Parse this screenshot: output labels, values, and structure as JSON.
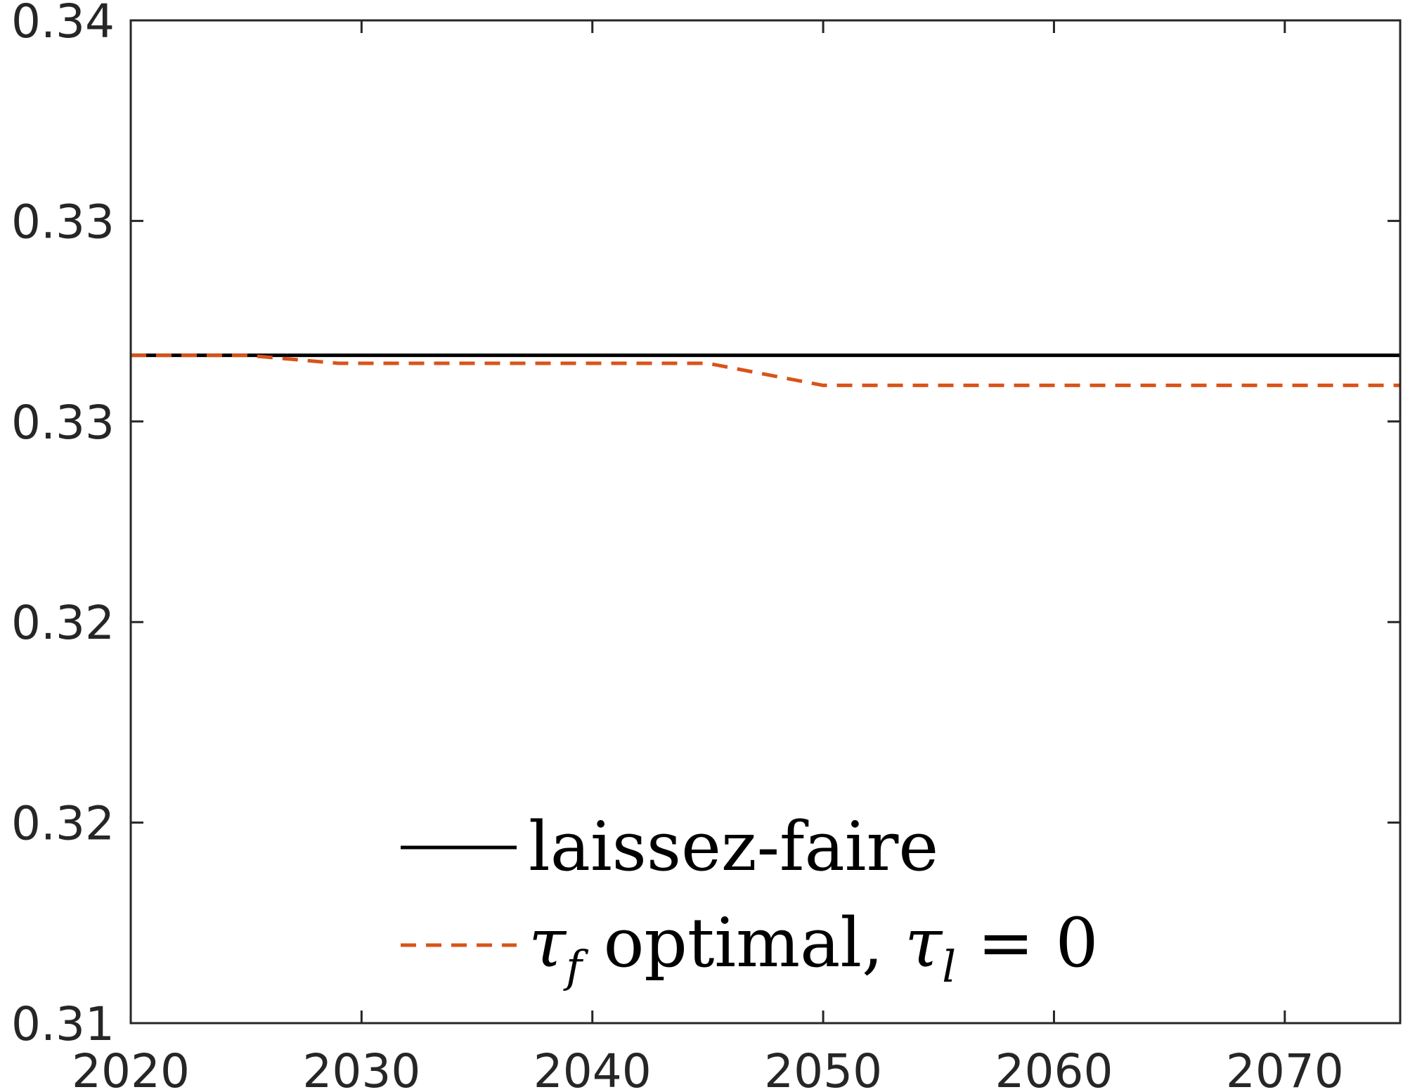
{
  "chart_data": {
    "type": "line",
    "title": "",
    "xlabel": "",
    "ylabel": "",
    "xlim": [
      2020,
      2075
    ],
    "ylim": [
      0.3125,
      0.3375
    ],
    "x_ticks": [
      2020,
      2030,
      2040,
      2050,
      2060,
      2070
    ],
    "x_tick_labels": [
      "2020",
      "2030",
      "2040",
      "2050",
      "2060",
      "2070"
    ],
    "y_ticks": [
      0.3125,
      0.3175,
      0.3225,
      0.3275,
      0.3325,
      0.3375
    ],
    "y_tick_labels": [
      "0.31",
      "0.32",
      "0.32",
      "0.33",
      "0.33",
      "0.34"
    ],
    "grid": false,
    "legend_position": "bottom-center",
    "series": [
      {
        "name": "laissez-faire",
        "style": "solid",
        "color": "#000000",
        "x": [
          2020,
          2075
        ],
        "y": [
          0.32915,
          0.32915
        ]
      },
      {
        "name": "τf optimal, τl = 0",
        "style": "dashed",
        "color": "#D95319",
        "x": [
          2020,
          2025,
          2026,
          2029,
          2045,
          2050,
          2075
        ],
        "y": [
          0.32915,
          0.32915,
          0.3291,
          0.32895,
          0.32895,
          0.3284,
          0.3284
        ]
      }
    ],
    "legend": [
      {
        "label": "laissez-faire"
      },
      {
        "label_parts": [
          "τ",
          "f",
          " optimal, ",
          "τ",
          "l",
          " = 0"
        ]
      }
    ]
  }
}
